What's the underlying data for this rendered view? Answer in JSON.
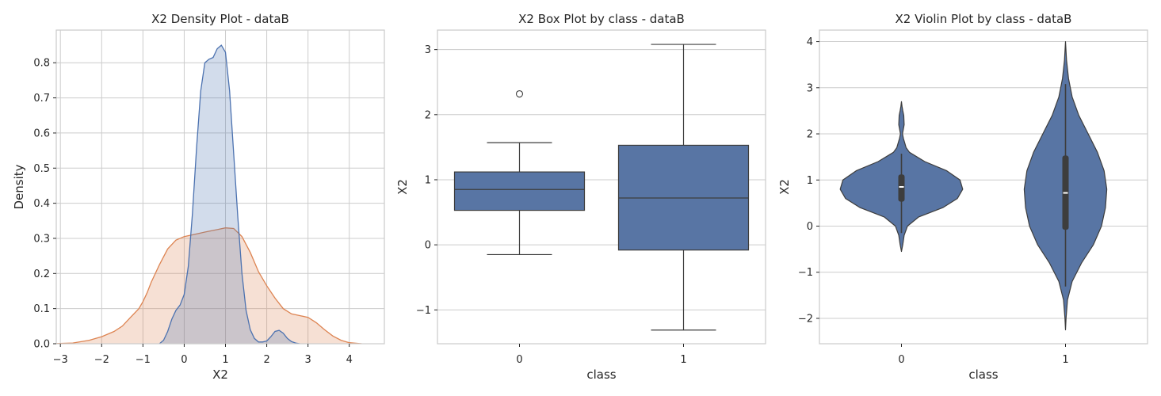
{
  "colors": {
    "class0": "#4c72b0",
    "class1": "#dd8452",
    "box_fill": "#5875a4",
    "line_dark": "#3d3d3d",
    "grid": "#cccccc"
  },
  "chart_data": [
    {
      "type": "area",
      "subtype": "kde-density",
      "title": "X2 Density Plot - dataB",
      "xlabel": "X2",
      "ylabel": "Density",
      "xlim": [
        -3.1,
        4.85
      ],
      "ylim": [
        0,
        0.893
      ],
      "xticks": [
        -3,
        -2,
        -1,
        0,
        1,
        2,
        3,
        4
      ],
      "yticks": [
        0.0,
        0.1,
        0.2,
        0.3,
        0.4,
        0.5,
        0.6,
        0.7,
        0.8
      ],
      "ytick_labels": [
        "0.0",
        "0.1",
        "0.2",
        "0.3",
        "0.4",
        "0.5",
        "0.6",
        "0.7",
        "0.8"
      ],
      "grid": true,
      "series": [
        {
          "class": "1",
          "x": [
            -3.25,
            -2.7,
            -2.3,
            -2.0,
            -1.7,
            -1.5,
            -1.3,
            -1.1,
            -1.0,
            -0.9,
            -0.8,
            -0.6,
            -0.4,
            -0.2,
            0.0,
            0.2,
            0.5,
            0.8,
            1.0,
            1.2,
            1.4,
            1.6,
            1.8,
            2.0,
            2.2,
            2.4,
            2.6,
            2.8,
            3.0,
            3.2,
            3.4,
            3.6,
            3.8,
            4.0,
            4.3
          ],
          "y": [
            0.0,
            0.002,
            0.01,
            0.02,
            0.035,
            0.05,
            0.075,
            0.1,
            0.12,
            0.145,
            0.175,
            0.225,
            0.27,
            0.295,
            0.305,
            0.31,
            0.318,
            0.325,
            0.33,
            0.328,
            0.305,
            0.26,
            0.205,
            0.165,
            0.13,
            0.1,
            0.085,
            0.08,
            0.075,
            0.06,
            0.04,
            0.022,
            0.01,
            0.003,
            0.0
          ]
        },
        {
          "class": "0",
          "x": [
            -0.6,
            -0.5,
            -0.4,
            -0.3,
            -0.2,
            -0.1,
            0.0,
            0.1,
            0.2,
            0.3,
            0.4,
            0.5,
            0.6,
            0.7,
            0.8,
            0.9,
            1.0,
            1.1,
            1.2,
            1.3,
            1.4,
            1.5,
            1.6,
            1.7,
            1.8,
            1.9,
            2.0,
            2.1,
            2.2,
            2.3,
            2.4,
            2.5,
            2.6,
            2.7,
            2.8
          ],
          "y": [
            0.0,
            0.01,
            0.035,
            0.07,
            0.095,
            0.11,
            0.14,
            0.22,
            0.37,
            0.56,
            0.72,
            0.8,
            0.81,
            0.815,
            0.84,
            0.85,
            0.83,
            0.72,
            0.54,
            0.36,
            0.2,
            0.095,
            0.04,
            0.015,
            0.005,
            0.005,
            0.008,
            0.02,
            0.035,
            0.038,
            0.03,
            0.015,
            0.006,
            0.002,
            0.0
          ]
        }
      ]
    },
    {
      "type": "box",
      "title": "X2 Box Plot by class - dataB",
      "xlabel": "class",
      "ylabel": "X2",
      "categories": [
        "0",
        "1"
      ],
      "ylim": [
        -1.52,
        3.3
      ],
      "yticks": [
        -1,
        0,
        1,
        2,
        3
      ],
      "ytick_labels": [
        "−1",
        "0",
        "1",
        "2",
        "3"
      ],
      "grid": true,
      "boxes": [
        {
          "category": "0",
          "whisker_low": -0.15,
          "q1": 0.53,
          "median": 0.85,
          "q3": 1.12,
          "whisker_high": 1.57,
          "outliers": [
            2.32
          ]
        },
        {
          "category": "1",
          "whisker_low": -1.31,
          "q1": -0.08,
          "median": 0.72,
          "q3": 1.53,
          "whisker_high": 3.08,
          "outliers": []
        }
      ]
    },
    {
      "type": "violin",
      "title": "X2 Violin Plot by class - dataB",
      "xlabel": "class",
      "ylabel": "X2",
      "categories": [
        "0",
        "1"
      ],
      "ylim": [
        -2.55,
        4.25
      ],
      "yticks": [
        -2,
        -1,
        0,
        1,
        2,
        3,
        4
      ],
      "ytick_labels": [
        "−2",
        "−1",
        "0",
        "1",
        "2",
        "3",
        "4"
      ],
      "grid": true,
      "violins": [
        {
          "category": "0",
          "q1": 0.53,
          "median": 0.85,
          "q3": 1.12,
          "whisker_low": -0.15,
          "whisker_high": 1.57,
          "profile_y": [
            -0.55,
            -0.4,
            -0.2,
            0.0,
            0.2,
            0.4,
            0.6,
            0.8,
            1.0,
            1.2,
            1.4,
            1.6,
            1.7,
            1.8,
            1.9,
            2.0,
            2.2,
            2.4,
            2.5,
            2.6,
            2.7
          ],
          "profile_halfwidth": [
            0.0,
            0.02,
            0.04,
            0.09,
            0.26,
            0.62,
            0.84,
            0.92,
            0.88,
            0.68,
            0.35,
            0.12,
            0.07,
            0.05,
            0.03,
            0.015,
            0.04,
            0.035,
            0.02,
            0.008,
            0.0
          ]
        },
        {
          "category": "1",
          "q1": -0.08,
          "median": 0.72,
          "q3": 1.53,
          "whisker_low": -1.31,
          "whisker_high": 3.08,
          "profile_y": [
            -2.25,
            -2.0,
            -1.6,
            -1.2,
            -0.8,
            -0.4,
            0.0,
            0.4,
            0.8,
            1.2,
            1.6,
            2.0,
            2.4,
            2.8,
            3.2,
            3.6,
            4.0
          ],
          "profile_halfwidth": [
            0.0,
            0.008,
            0.03,
            0.1,
            0.24,
            0.42,
            0.54,
            0.6,
            0.62,
            0.58,
            0.48,
            0.34,
            0.2,
            0.1,
            0.045,
            0.015,
            0.0
          ]
        }
      ]
    }
  ]
}
